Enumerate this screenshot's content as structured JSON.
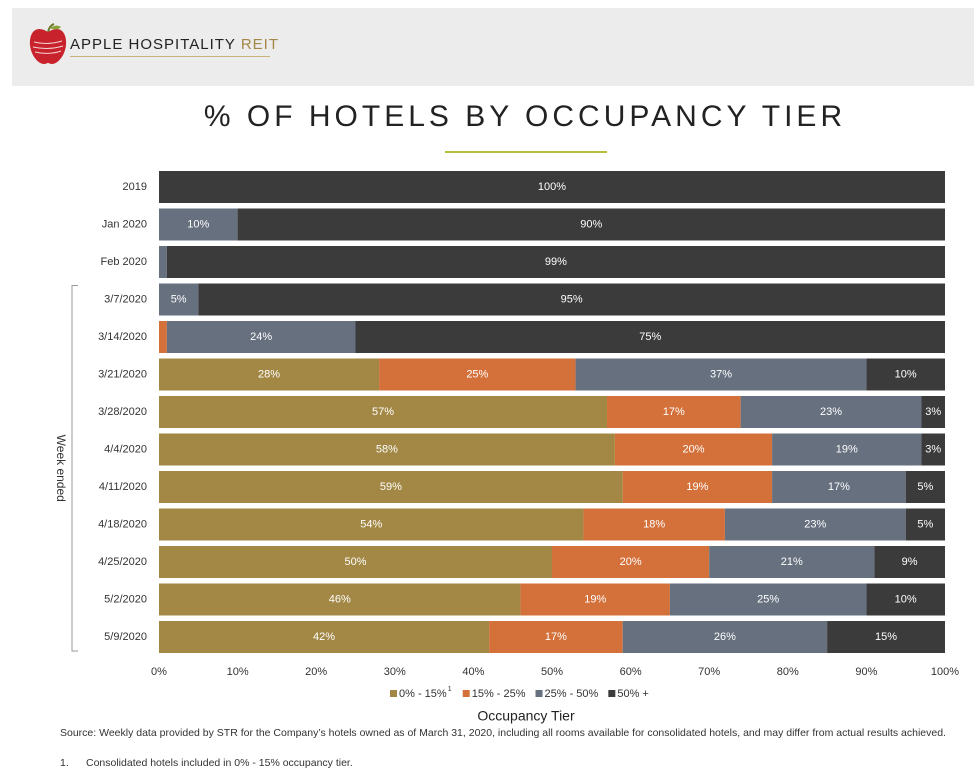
{
  "header": {
    "logo_main": "APPLE HOSPITALITY",
    "logo_accent": "REIT",
    "title": "% OF HOTELS BY OCCUPANCY TIER"
  },
  "colors": {
    "tier1": "#a38845",
    "tier2": "#d4713b",
    "tier3": "#66707f",
    "tier4": "#3b3b3b",
    "accent_line": "#b7bf3a"
  },
  "chart_data": {
    "type": "bar",
    "orientation": "horizontal",
    "stacked": true,
    "xlabel": "Occupancy Tier",
    "ylabel": "Week ended",
    "xlim": [
      0,
      100
    ],
    "xticks": [
      "0%",
      "10%",
      "20%",
      "30%",
      "40%",
      "50%",
      "60%",
      "70%",
      "80%",
      "90%",
      "100%"
    ],
    "categories": [
      "2019",
      "Jan 2020",
      "Feb 2020",
      "3/7/2020",
      "3/14/2020",
      "3/21/2020",
      "3/28/2020",
      "4/4/2020",
      "4/11/2020",
      "4/18/2020",
      "4/25/2020",
      "5/2/2020",
      "5/9/2020"
    ],
    "week_ended_range": [
      "3/7/2020",
      "5/9/2020"
    ],
    "legend_position": "bottom",
    "series": [
      {
        "name": "0% - 15%",
        "superscript": "1",
        "color": "#a38845",
        "values": [
          0,
          0,
          0,
          0,
          0,
          28,
          57,
          58,
          59,
          54,
          50,
          46,
          42
        ]
      },
      {
        "name": "15% - 25%",
        "color": "#d4713b",
        "values": [
          0,
          0,
          0,
          0,
          1,
          25,
          17,
          20,
          19,
          18,
          20,
          19,
          17
        ]
      },
      {
        "name": "25% - 50%",
        "color": "#66707f",
        "values": [
          0,
          10,
          1,
          5,
          24,
          37,
          23,
          19,
          17,
          23,
          21,
          25,
          26
        ]
      },
      {
        "name": "50% +",
        "color": "#3b3b3b",
        "values": [
          100,
          90,
          99,
          95,
          75,
          10,
          3,
          3,
          5,
          5,
          9,
          10,
          15
        ]
      }
    ]
  },
  "footnotes": {
    "source": "Source: Weekly data provided by STR for the Company’s hotels owned as of March 31, 2020, including all rooms available for consolidated hotels, and may differ from actual results achieved.",
    "note_number": "1.",
    "note_text": "Consolidated hotels included in 0% - 15% occupancy tier."
  }
}
